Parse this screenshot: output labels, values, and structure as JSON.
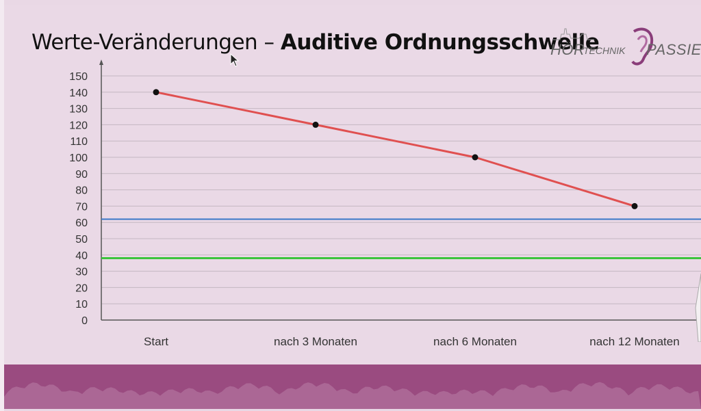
{
  "slide": {
    "title_regular": "Werte-Veränderungen – ",
    "title_bold": "Auditive Ordnungsschwelle"
  },
  "logo": {
    "text_left": "HÖR",
    "text_middle": "TECHNIK",
    "text_right": "PASSIEL"
  },
  "colors": {
    "background": "#ead9e6",
    "series_line": "#e05050",
    "marker": "#111111",
    "ref_blue": "#3a78c8",
    "ref_green": "#3cc43c",
    "footer": "#9a4b80"
  },
  "chart_data": {
    "type": "line",
    "title": "Werte-Veränderungen – Auditive Ordnungsschwelle",
    "categories": [
      "Start",
      "nach 3 Monaten",
      "nach 6 Monaten",
      "nach 12 Monaten"
    ],
    "series": [
      {
        "values": [
          140,
          120,
          100,
          70
        ]
      }
    ],
    "reference_lines": [
      62,
      38
    ],
    "ylim": [
      0,
      150
    ],
    "yticks": [
      0,
      10,
      20,
      30,
      40,
      50,
      60,
      70,
      80,
      90,
      100,
      110,
      120,
      130,
      140,
      150
    ],
    "xlabel": "",
    "ylabel": "",
    "grid": true,
    "legend": "none"
  }
}
